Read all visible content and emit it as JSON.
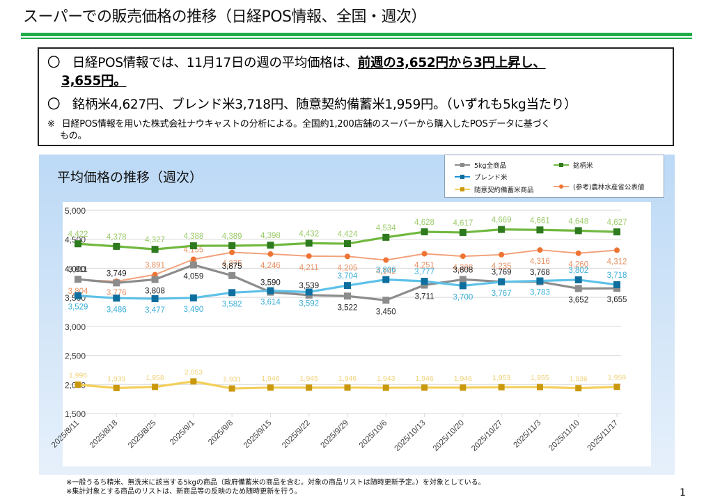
{
  "page": {
    "title": "スーパーでの販売価格の推移（日経POS情報、全国・週次）",
    "page_number": "1"
  },
  "summary": {
    "bullet": "〇",
    "line1_plain": "日経POS情報では、11月17日の週の平均価格は、",
    "line1_emph": "前週の3,652円から3円上昇し、",
    "line2_emph": "3,655円。",
    "line3": "銘柄米4,627円、ブレンド米3,718円、随意契約備蓄米1,959円。（いずれも5kg当たり）",
    "note_mark": "※",
    "note": "日経POS情報を用いた株式会社ナウキャストの分析による。全国約1,200店舗のスーパーから購入したPOSデータに基づく",
    "note_cont": "もの。"
  },
  "footnotes": [
    "※一般うるち精米、無洗米に該当する5kgの商品（政府備蓄米の商品を含む。対象の商品リストは随時更新予定。）を対象としている。",
    "※集計対象とする商品のリストは、新商品等の反映のため随時更新を行う。"
  ],
  "colors": {
    "accent_green_rule": "#1fae4a",
    "all_5kg": "#8c8c8c",
    "all_5kg_marker": "#8c8c8c",
    "all_5kg_label": "#222222",
    "brand": "#70b83f",
    "brand_marker": "#2e7a1e",
    "brand_label": "#9ccb6a",
    "blend": "#5ec1e8",
    "blend_marker": "#0e6e9e",
    "blend_label": "#3aaed8",
    "stockpile": "#f3cf5a",
    "stockpile_marker": "#c9980c",
    "stockpile_label": "#f0d27a",
    "maff": "#f2a27c",
    "maff_marker": "#ee7433",
    "maff_label": "#e79164"
  },
  "chart_data": {
    "type": "line",
    "title": "平均価格の推移（週次）",
    "xlabel": "",
    "ylabel": "",
    "ylim": [
      1500,
      5000
    ],
    "yticks": [
      1500,
      2000,
      2500,
      3000,
      3500,
      4000,
      4500,
      5000
    ],
    "ytick_labels": [
      "1,500",
      "2,000",
      "2,500",
      "3,000",
      "3,500",
      "4,000",
      "4,500",
      "5,000"
    ],
    "grid": true,
    "legend_position": "top-right",
    "categories": [
      "2025/8/11",
      "2025/8/18",
      "2025/8/25",
      "2025/9/1",
      "2025/9/8",
      "2025/9/15",
      "2025/9/22",
      "2025/9/29",
      "2025/10/6",
      "2025/10/13",
      "2025/10/20",
      "2025/10/27",
      "2025/11/3",
      "2025/11/10",
      "2025/11/17"
    ],
    "series": [
      {
        "key": "all_5kg",
        "name": "5kg全商品",
        "marker": "square",
        "values": [
          3811,
          3749,
          3808,
          4059,
          3875,
          3590,
          3539,
          3522,
          3450,
          3711,
          3808,
          3769,
          3768,
          3652,
          3655
        ],
        "label_pos": [
          "above",
          "above",
          "below",
          "below",
          "above",
          "above",
          "above",
          "below",
          "below",
          "below",
          "above",
          "above",
          "above",
          "below",
          "below"
        ]
      },
      {
        "key": "brand",
        "name": "銘柄米",
        "marker": "square",
        "values": [
          4422,
          4378,
          4327,
          4388,
          4389,
          4398,
          4432,
          4424,
          4534,
          4628,
          4617,
          4669,
          4661,
          4648,
          4627
        ],
        "label_pos": [
          "above",
          "above",
          "above",
          "above",
          "above",
          "above",
          "above",
          "above",
          "above",
          "above",
          "above",
          "above",
          "above",
          "above",
          "above"
        ]
      },
      {
        "key": "blend",
        "name": "ブレンド米",
        "marker": "square",
        "values": [
          3529,
          3486,
          3477,
          3490,
          3582,
          3614,
          3592,
          3704,
          3806,
          3777,
          3700,
          3767,
          3783,
          3802,
          3718
        ],
        "label_pos": [
          "below",
          "below",
          "below",
          "below",
          "below",
          "below",
          "below",
          "above",
          "above",
          "above",
          "below",
          "below",
          "below",
          "above",
          "above"
        ]
      },
      {
        "key": "maff",
        "name": "(参考)農林水産省公表値",
        "marker": "circle",
        "values": [
          3804,
          3776,
          3891,
          4155,
          4275,
          4246,
          4211,
          4205,
          4142,
          4251,
          4208,
          4235,
          4316,
          4260,
          4312
        ],
        "label_pos": [
          "below",
          "below",
          "above",
          "above",
          "below",
          "below",
          "below",
          "below",
          "below",
          "below",
          "below",
          "below",
          "below",
          "below",
          "below"
        ]
      },
      {
        "key": "stockpile",
        "name": "随意契約備蓄米商品",
        "marker": "square",
        "values": [
          1996,
          1939,
          1958,
          2053,
          1931,
          1946,
          1945,
          1946,
          1943,
          1946,
          1946,
          1953,
          1955,
          1936,
          1959
        ],
        "label_pos": [
          "above",
          "above",
          "above",
          "above",
          "above",
          "above",
          "above",
          "above",
          "above",
          "above",
          "above",
          "above",
          "above",
          "above",
          "above"
        ]
      }
    ],
    "legend": [
      {
        "key": "all_5kg",
        "label": "5kg全商品"
      },
      {
        "key": "brand",
        "label": "銘柄米"
      },
      {
        "key": "blend",
        "label": "ブレンド米"
      },
      {
        "key": "stockpile",
        "label": "随意契約備蓄米商品"
      },
      {
        "key": "maff",
        "label": "(参考)農林水産省公表値"
      }
    ]
  }
}
